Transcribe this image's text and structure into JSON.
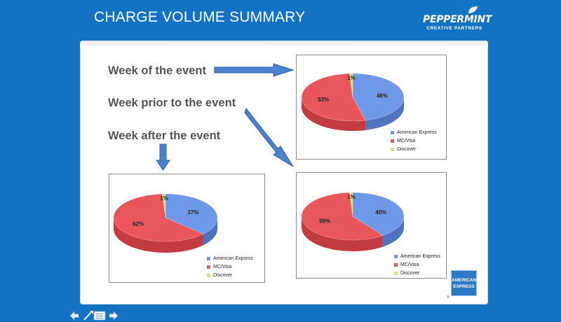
{
  "slide": {
    "title": "CHARGE VOLUME SUMMARY"
  },
  "logo": {
    "brand": "PEPPERMINT",
    "subtitle": "CREATIVE PARTNERS"
  },
  "labels": {
    "week_of": "Week of the event",
    "week_prior": "Week prior to the event",
    "week_after": "Week after the event"
  },
  "colors": {
    "amex": "#6f98e6",
    "mcvisa": "#e9565c",
    "discover": "#d6e27a",
    "arrow": "#4a82cf"
  },
  "amex_logo": {
    "line1": "AMERICAN",
    "line2": "EXPRESS",
    "mark": "®"
  },
  "nav": {
    "back": "back-arrow-icon",
    "home": "menu-icon",
    "forward": "forward-arrow-icon"
  },
  "chart_data": [
    {
      "type": "pie",
      "categories": [
        "American Express",
        "MC/Visa",
        "Discover"
      ],
      "values": [
        46,
        53,
        1
      ],
      "data_labels": [
        "46%",
        "53%",
        "1%"
      ],
      "legend": "bottom-right"
    },
    {
      "type": "pie",
      "categories": [
        "American Express",
        "MC/Visa",
        "Discover"
      ],
      "values": [
        40,
        59,
        1
      ],
      "data_labels": [
        "40%",
        "59%",
        "1%"
      ],
      "legend": "bottom-right"
    },
    {
      "type": "pie",
      "categories": [
        "American Express",
        "MC/Visa",
        "Discover"
      ],
      "values": [
        37,
        62,
        1
      ],
      "data_labels": [
        "37%",
        "62%",
        "1%"
      ],
      "legend": "bottom-right"
    }
  ]
}
